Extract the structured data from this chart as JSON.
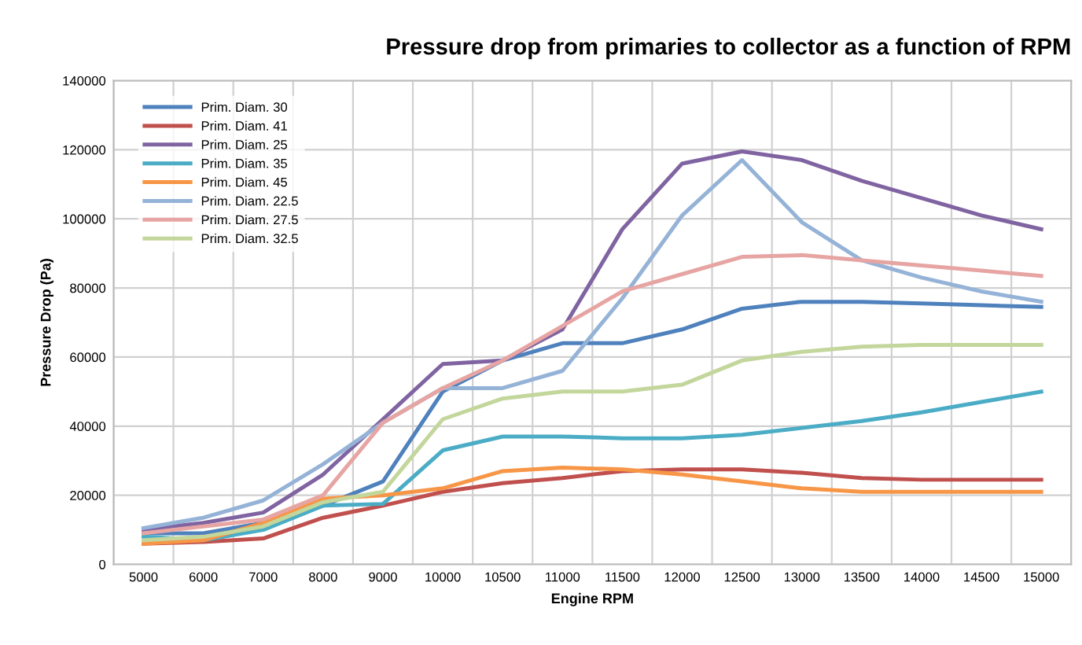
{
  "chart_data": {
    "type": "line",
    "title": "Pressure drop from primaries to collector as a function of RPM",
    "xlabel": "Engine RPM",
    "ylabel": "Pressure Drop (Pa)",
    "categories": [
      "5000",
      "6000",
      "7000",
      "8000",
      "9000",
      "10000",
      "10500",
      "11000",
      "11500",
      "12000",
      "12500",
      "13000",
      "13500",
      "14000",
      "14500",
      "15000"
    ],
    "series": [
      {
        "name": "Prim. Diam. 30",
        "color": "#4f81bd",
        "values": [
          9000,
          9000,
          12000,
          17000,
          24000,
          50000,
          59000,
          64000,
          64000,
          68000,
          74000,
          76000,
          76000,
          75500,
          75000,
          74500
        ]
      },
      {
        "name": "Prim. Diam. 41",
        "color": "#c0504d",
        "values": [
          6000,
          6500,
          7500,
          13500,
          17000,
          21000,
          23500,
          25000,
          27000,
          27500,
          27500,
          26500,
          25000,
          24500,
          24500,
          24500
        ]
      },
      {
        "name": "Prim. Diam. 25",
        "color": "#8064a2",
        "values": [
          10000,
          12000,
          15000,
          26000,
          42000,
          58000,
          59000,
          68000,
          97000,
          116000,
          119500,
          117000,
          111000,
          106000,
          101000,
          97000
        ]
      },
      {
        "name": "Prim. Diam. 35",
        "color": "#4bacc6",
        "values": [
          8000,
          7000,
          10000,
          17000,
          17500,
          33000,
          37000,
          37000,
          36500,
          36500,
          37500,
          39500,
          41500,
          44000,
          47000,
          50000
        ]
      },
      {
        "name": "Prim. Diam. 45",
        "color": "#f79646",
        "values": [
          6000,
          7000,
          12000,
          19000,
          20000,
          22000,
          27000,
          28000,
          27500,
          26000,
          24000,
          22000,
          21000,
          21000,
          21000,
          21000
        ]
      },
      {
        "name": "Prim. Diam. 22.5",
        "color": "#95b3d7",
        "values": [
          10500,
          13500,
          18500,
          29000,
          41000,
          51000,
          51000,
          56000,
          77000,
          101000,
          117000,
          99000,
          88000,
          83000,
          79000,
          76000
        ]
      },
      {
        "name": "Prim. Diam. 27.5",
        "color": "#e6a5a3",
        "values": [
          9000,
          11000,
          13000,
          20000,
          41000,
          51000,
          59000,
          69000,
          79000,
          84000,
          89000,
          89500,
          88000,
          86500,
          85000,
          83500
        ]
      },
      {
        "name": "Prim. Diam. 32.5",
        "color": "#c3d69b",
        "values": [
          7000,
          8000,
          11000,
          18000,
          21000,
          42000,
          48000,
          50000,
          50000,
          52000,
          59000,
          61500,
          63000,
          63500,
          63500,
          63500
        ]
      }
    ],
    "ylim": [
      0,
      140000
    ],
    "yticks": [
      0,
      20000,
      40000,
      60000,
      80000,
      100000,
      120000,
      140000
    ],
    "grid": true,
    "legend": "top left",
    "marker": "none",
    "line_style": "solid"
  }
}
